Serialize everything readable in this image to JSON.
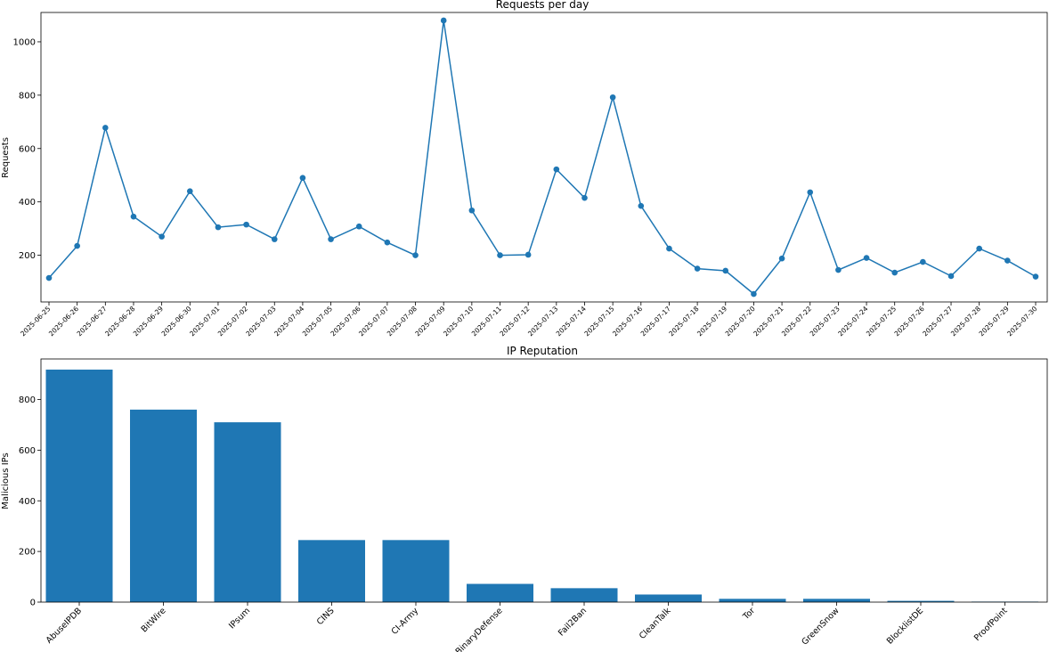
{
  "chart_data": [
    {
      "type": "line",
      "title": "Requests per day",
      "xlabel": "",
      "ylabel": "Requests",
      "ylim": [
        25,
        1110
      ],
      "yticks": [
        200,
        400,
        600,
        800,
        1000
      ],
      "grid": false,
      "line_color": "#1f77b4",
      "x": [
        "2025-06-25",
        "2025-06-26",
        "2025-06-27",
        "2025-06-28",
        "2025-06-29",
        "2025-06-30",
        "2025-07-01",
        "2025-07-02",
        "2025-07-03",
        "2025-07-04",
        "2025-07-05",
        "2025-07-06",
        "2025-07-07",
        "2025-07-08",
        "2025-07-09",
        "2025-07-10",
        "2025-07-11",
        "2025-07-12",
        "2025-07-13",
        "2025-07-14",
        "2025-07-15",
        "2025-07-16",
        "2025-07-17",
        "2025-07-18",
        "2025-07-19",
        "2025-07-20",
        "2025-07-21",
        "2025-07-22",
        "2025-07-23",
        "2025-07-24",
        "2025-07-25",
        "2025-07-26",
        "2025-07-27",
        "2025-07-28",
        "2025-07-29",
        "2025-07-30"
      ],
      "values": [
        115,
        235,
        678,
        345,
        270,
        440,
        305,
        315,
        260,
        490,
        260,
        308,
        248,
        200,
        1080,
        368,
        200,
        202,
        522,
        415,
        792,
        385,
        225,
        150,
        142,
        55,
        188,
        436,
        145,
        190,
        135,
        175,
        122,
        225,
        180,
        120
      ]
    },
    {
      "type": "bar",
      "title": "IP Reputation",
      "xlabel": "",
      "ylabel": "Malicious IPs",
      "ylim": [
        0,
        960
      ],
      "yticks": [
        0,
        200,
        400,
        600,
        800
      ],
      "grid": false,
      "bar_color": "#1f77b4",
      "categories": [
        "AbuseIPDB",
        "BitWire",
        "IPsum",
        "CINS",
        "CI-Army",
        "BinaryDefense",
        "Fail2Ban",
        "CleanTalk",
        "Tor",
        "GreenSnow",
        "BlocklistDE",
        "ProofPoint"
      ],
      "values": [
        918,
        760,
        710,
        245,
        245,
        72,
        55,
        30,
        13,
        13,
        5,
        2
      ]
    }
  ]
}
